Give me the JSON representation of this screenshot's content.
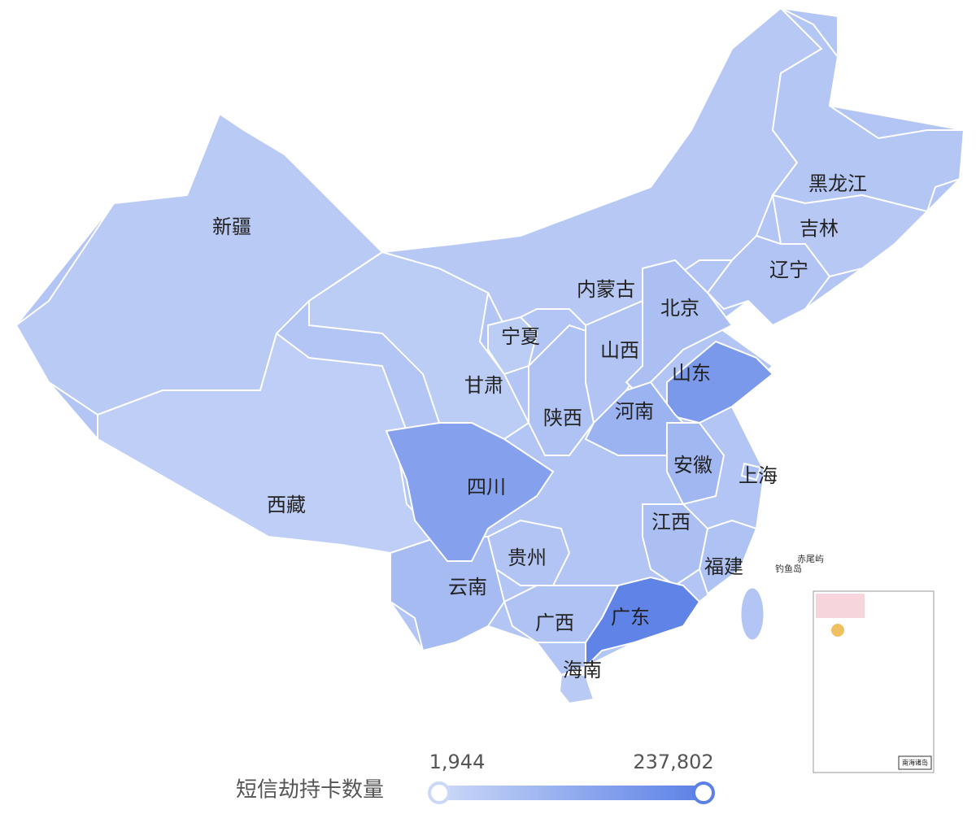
{
  "chart_data": {
    "type": "map",
    "regions": [
      {
        "name": "新疆",
        "value": 40000
      },
      {
        "name": "西藏",
        "value": 30000
      },
      {
        "name": "甘肃",
        "value": 35000
      },
      {
        "name": "内蒙古",
        "value": 45000
      },
      {
        "name": "宁夏",
        "value": 35000
      },
      {
        "name": "陕西",
        "value": 60000
      },
      {
        "name": "山西",
        "value": 55000
      },
      {
        "name": "北京",
        "value": 70000
      },
      {
        "name": "山东",
        "value": 170000
      },
      {
        "name": "河南",
        "value": 100000
      },
      {
        "name": "安徽",
        "value": 90000
      },
      {
        "name": "上海",
        "value": 70000
      },
      {
        "name": "江西",
        "value": 70000
      },
      {
        "name": "福建",
        "value": 60000
      },
      {
        "name": "广东",
        "value": 230000
      },
      {
        "name": "海南",
        "value": 40000
      },
      {
        "name": "广西",
        "value": 60000
      },
      {
        "name": "贵州",
        "value": 55000
      },
      {
        "name": "云南",
        "value": 80000
      },
      {
        "name": "四川",
        "value": 150000
      },
      {
        "name": "黑龙江",
        "value": 50000
      },
      {
        "name": "吉林",
        "value": 45000
      },
      {
        "name": "辽宁",
        "value": 55000
      }
    ],
    "legend": {
      "title": "短信劫持卡数量",
      "min": {
        "value": 1944,
        "label": "1,944"
      },
      "max": {
        "value": 237802,
        "label": "237,802"
      },
      "colors": [
        "#cbd8f8",
        "#5b80e6"
      ]
    },
    "annotations": [
      "钓鱼岛",
      "赤尾屿"
    ],
    "inset_title": "南海诸岛"
  }
}
